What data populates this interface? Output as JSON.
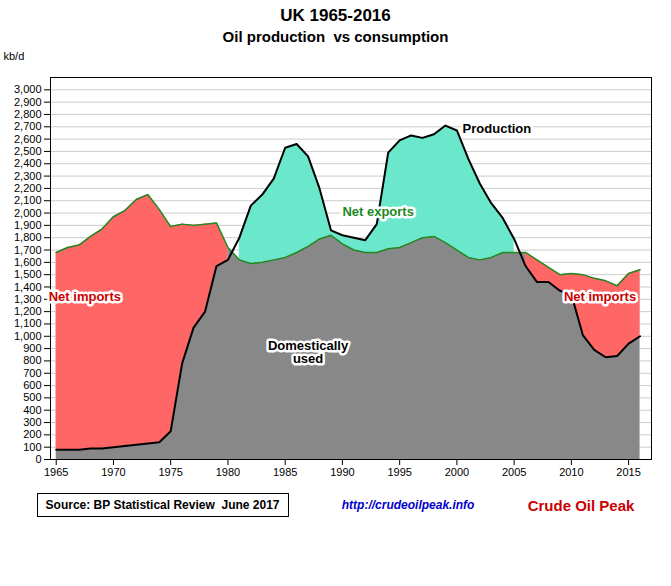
{
  "chart_data": {
    "type": "area",
    "title": "UK 1965-2016",
    "subtitle": "Oil production  vs consumption",
    "y_label": "kb/d",
    "x": [
      1965,
      1966,
      1967,
      1968,
      1969,
      1970,
      1971,
      1972,
      1973,
      1974,
      1975,
      1976,
      1977,
      1978,
      1979,
      1980,
      1981,
      1982,
      1983,
      1984,
      1985,
      1986,
      1987,
      1988,
      1989,
      1990,
      1991,
      1992,
      1993,
      1994,
      1995,
      1996,
      1997,
      1998,
      1999,
      2000,
      2001,
      2002,
      2003,
      2004,
      2005,
      2006,
      2007,
      2008,
      2009,
      2010,
      2011,
      2012,
      2013,
      2014,
      2015,
      2016
    ],
    "series": [
      {
        "color": "#228822",
        "values": [
          1680,
          1720,
          1740,
          1810,
          1870,
          1970,
          2020,
          2110,
          2150,
          2030,
          1890,
          1910,
          1900,
          1910,
          1920,
          1720,
          1620,
          1590,
          1600,
          1620,
          1640,
          1680,
          1730,
          1790,
          1820,
          1750,
          1700,
          1680,
          1680,
          1710,
          1720,
          1760,
          1800,
          1810,
          1760,
          1700,
          1640,
          1620,
          1640,
          1680,
          1680,
          1680,
          1620,
          1560,
          1500,
          1510,
          1500,
          1470,
          1450,
          1410,
          1510,
          1540
        ]
      },
      {
        "color": "#000000",
        "values": [
          80,
          80,
          80,
          90,
          90,
          100,
          110,
          120,
          130,
          140,
          230,
          780,
          1070,
          1200,
          1570,
          1620,
          1800,
          2060,
          2150,
          2280,
          2530,
          2560,
          2460,
          2200,
          1860,
          1820,
          1800,
          1780,
          1910,
          2490,
          2590,
          2630,
          2610,
          2640,
          2710,
          2670,
          2440,
          2240,
          2080,
          1960,
          1790,
          1570,
          1440,
          1440,
          1370,
          1340,
          1010,
          890,
          830,
          840,
          940,
          1000
        ]
      }
    ],
    "colors": [
      "#888888",
      "#6be8cc",
      "#ff3333"
    ],
    "xlim": [
      1964.5,
      2017
    ],
    "xticks": [
      1965,
      1970,
      1975,
      1980,
      1985,
      1990,
      1995,
      2000,
      2005,
      2010,
      2015
    ],
    "ylim": [
      0,
      3100
    ],
    "yticks": [
      0,
      100,
      200,
      300,
      400,
      500,
      600,
      700,
      800,
      900,
      {
        "value": 1000,
        "label": "1,000"
      },
      {
        "value": 1100,
        "label": "1,100"
      },
      {
        "value": 1200,
        "label": "1,200"
      },
      {
        "value": 1300,
        "label": "1,300"
      },
      {
        "value": 1400,
        "label": "1,400"
      },
      {
        "value": 1500,
        "label": "1,500"
      },
      {
        "value": 1600,
        "label": "1,600"
      },
      {
        "value": 1700,
        "label": "1,700"
      },
      {
        "value": 1800,
        "label": "1,800"
      },
      {
        "value": 1900,
        "label": "1,900"
      },
      {
        "value": 2000,
        "label": "2,000"
      },
      {
        "value": 2100,
        "label": "2,100"
      },
      {
        "value": 2200,
        "label": "2,200"
      },
      {
        "value": 2300,
        "label": "2,300"
      },
      {
        "value": 2400,
        "label": "2,400"
      },
      {
        "value": 2500,
        "label": "2,500"
      },
      {
        "value": 2600,
        "label": "2,600"
      },
      {
        "value": 2700,
        "label": "2,700"
      },
      {
        "value": 2800,
        "label": "2,800"
      },
      {
        "value": 2900,
        "label": "2,900"
      },
      {
        "value": 3000,
        "label": "3,000"
      }
    ],
    "grid": true,
    "annotations": [
      {
        "text": "Production",
        "x": 2000.5,
        "y": 2650,
        "color": "#000000"
      },
      {
        "text": "Net exports",
        "x": 1990,
        "y": 1980,
        "color": "#228822"
      },
      {
        "text": "Domestically\nused",
        "x": 1987,
        "y": 870,
        "color": "#000000"
      },
      {
        "text": "Net imports",
        "x": 1967.5,
        "y": 1290,
        "color": "#cc0000"
      },
      {
        "text": "Net imports",
        "x": 2012.5,
        "y": 1290,
        "color": "#cc0000"
      },
      {
        "text": "Source: BP Statistical Review  June 2017",
        "color": "#000000"
      },
      {
        "text": "http://crudeoilpeak.info",
        "color": "#0000cc"
      },
      {
        "text": "Crude Oil Peak",
        "color": "#cc0000"
      }
    ]
  }
}
